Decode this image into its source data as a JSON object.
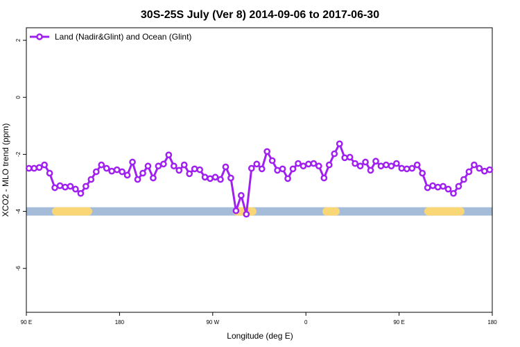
{
  "chart_data": {
    "type": "line",
    "title": "30S-25S July (Ver 8)   2014-09-06 to 2017-06-30",
    "x_label": "Longitude (deg E)",
    "y_label": "XCO2 - MLO trend (ppm)",
    "xlim": [
      90,
      540
    ],
    "ylim": [
      -7.54,
      2.44
    ],
    "xticks": [
      {
        "value": 90,
        "label": "90 E"
      },
      180,
      {
        "value": 270,
        "label": "90 W"
      },
      {
        "value": 360,
        "label": "0"
      },
      {
        "value": 450,
        "label": "90 E"
      },
      {
        "value": 540,
        "label": "180"
      }
    ],
    "yticks": [
      2,
      0,
      -2,
      -4,
      -6
    ],
    "legend": "top-left",
    "surface_band": {
      "y": -4,
      "ocean_color": "#a5bcd9",
      "land_color": "#fad776",
      "land_ranges": [
        [
          114.8,
          153.6
        ],
        [
          289.6,
          312.3
        ],
        [
          376,
          392.7
        ],
        [
          474.4,
          513.2
        ]
      ]
    },
    "series": [
      {
        "name": "Land (Nadir&Glint) and Ocean (Glint)",
        "color": "#a020f0",
        "x": [
          92.5,
          97.5,
          102.5,
          107.5,
          112.5,
          117.5,
          122.5,
          127.5,
          132.5,
          137.5,
          142.5,
          147.5,
          152.5,
          157.5,
          162.5,
          167.5,
          172.5,
          177.5,
          182.5,
          187.5,
          192.5,
          197.5,
          202.5,
          207.5,
          212.5,
          217.5,
          222.5,
          227.5,
          232.5,
          237.5,
          242.5,
          247.5,
          252.5,
          257.5,
          262.5,
          267.5,
          272.5,
          277.5,
          282.5,
          287.5,
          292.5,
          297.5,
          302.5,
          307.5,
          312.5,
          317.5,
          322.5,
          327.5,
          332.5,
          337.5,
          342.5,
          347.5,
          352.5,
          357.5,
          362.5,
          367.5,
          372.5,
          377.5,
          382.5,
          387.5,
          392.5,
          397.5,
          402.5,
          407.5,
          412.5,
          417.5,
          422.5,
          427.5,
          432.5,
          437.5,
          442.5,
          447.5,
          452.5,
          457.5,
          462.5,
          467.5,
          472.5,
          477.5,
          482.5,
          487.5,
          492.5,
          497.5,
          502.5,
          507.5,
          512.5,
          517.5,
          522.5,
          527.5,
          532.5,
          537.5
        ],
        "values": [
          -2.49,
          -2.49,
          -2.46,
          -2.37,
          -2.66,
          -3.17,
          -3.1,
          -3.15,
          -3.12,
          -3.22,
          -3.37,
          -3.12,
          -2.88,
          -2.61,
          -2.37,
          -2.49,
          -2.59,
          -2.54,
          -2.61,
          -2.73,
          -2.27,
          -2.88,
          -2.66,
          -2.41,
          -2.83,
          -2.41,
          -2.34,
          -2.02,
          -2.41,
          -2.56,
          -2.37,
          -2.68,
          -2.51,
          -2.54,
          -2.8,
          -2.85,
          -2.8,
          -2.88,
          -2.44,
          -2.83,
          -3.98,
          -3.44,
          -4.1,
          -2.49,
          -2.34,
          -2.51,
          -1.9,
          -2.22,
          -2.56,
          -2.51,
          -2.85,
          -2.51,
          -2.32,
          -2.41,
          -2.34,
          -2.32,
          -2.41,
          -2.83,
          -2.37,
          -1.98,
          -1.63,
          -2.12,
          -2.1,
          -2.32,
          -2.41,
          -2.27,
          -2.56,
          -2.24,
          -2.41,
          -2.37,
          -2.41,
          -2.32,
          -2.49,
          -2.51,
          -2.49,
          -2.37,
          -2.66,
          -3.17,
          -3.1,
          -3.15,
          -3.12,
          -3.22,
          -3.37,
          -3.12,
          -2.88,
          -2.61,
          -2.37,
          -2.49,
          -2.59,
          -2.54
        ]
      }
    ]
  }
}
